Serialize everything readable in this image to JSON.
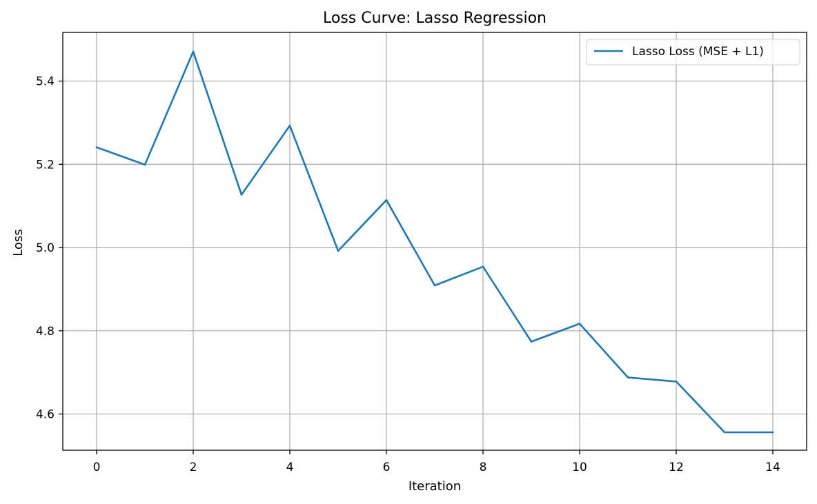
{
  "chart_data": {
    "type": "line",
    "title": "Loss Curve: Lasso Regression",
    "xlabel": "Iteration",
    "ylabel": "Loss",
    "xlim": [
      -0.7,
      14.7
    ],
    "ylim": [
      4.513,
      5.517
    ],
    "xticks": [
      0,
      2,
      4,
      6,
      8,
      10,
      12,
      14
    ],
    "xtick_labels": [
      "0",
      "2",
      "4",
      "6",
      "8",
      "10",
      "12",
      "14"
    ],
    "yticks": [
      4.6,
      4.8,
      5.0,
      5.2,
      5.4
    ],
    "ytick_labels": [
      "4.6",
      "4.8",
      "5.0",
      "5.2",
      "5.4"
    ],
    "grid": true,
    "legend_position": "top-right",
    "series": [
      {
        "name": "Lasso Loss (MSE + L1)",
        "color": "#1f77b4",
        "x": [
          0,
          1,
          2,
          3,
          4,
          5,
          6,
          7,
          8,
          9,
          10,
          11,
          12,
          13,
          14
        ],
        "y": [
          5.241,
          5.199,
          5.471,
          5.127,
          5.293,
          4.992,
          5.114,
          4.909,
          4.954,
          4.774,
          4.817,
          4.688,
          4.678,
          4.556,
          4.556
        ]
      }
    ]
  }
}
